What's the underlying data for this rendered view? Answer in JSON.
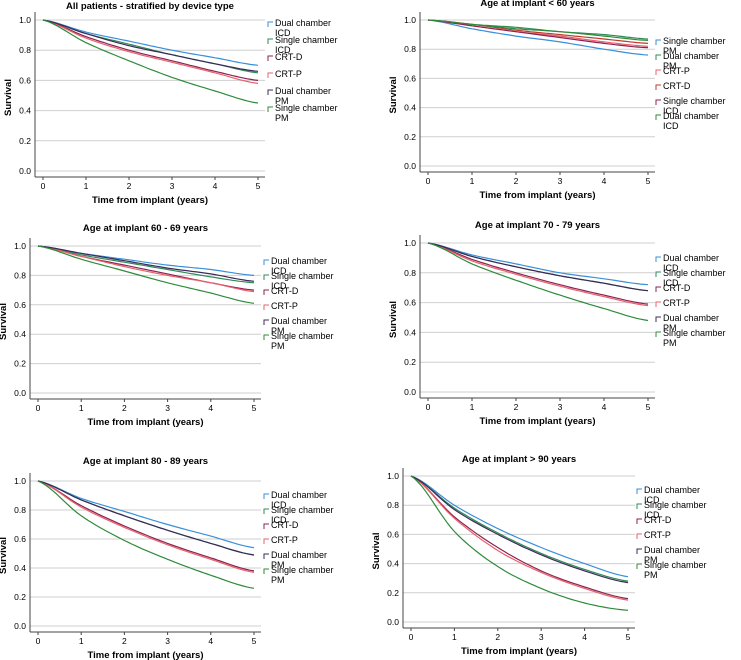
{
  "chart_data": [
    {
      "type": "line",
      "title": "All patients - stratified by device type",
      "xlabel": "Time from implant (years)",
      "ylabel": "Survival",
      "xlim": [
        0,
        5
      ],
      "ylim": [
        0,
        1.0
      ],
      "xticks": [
        "0",
        "1",
        "2",
        "3",
        "4",
        "5"
      ],
      "yticks": [
        "0.0",
        "0.2",
        "0.4",
        "0.6",
        "0.8",
        "1.0"
      ],
      "x": [
        0,
        1,
        2,
        3,
        4,
        5
      ],
      "legend": [
        "Dual chamber ICD",
        "Single chamber ICD",
        "CRT-D",
        "CRT-P",
        "Dual chamber PM",
        "Single chamber PM"
      ],
      "series": [
        {
          "name": "Dual chamber ICD",
          "color": "#3a8fd9",
          "values": [
            1.0,
            0.92,
            0.86,
            0.8,
            0.75,
            0.7
          ]
        },
        {
          "name": "Single chamber ICD",
          "color": "#2e8b57",
          "values": [
            1.0,
            0.91,
            0.84,
            0.77,
            0.71,
            0.65
          ]
        },
        {
          "name": "CRT-D",
          "color": "#8b2252",
          "values": [
            1.0,
            0.89,
            0.8,
            0.73,
            0.66,
            0.6
          ]
        },
        {
          "name": "CRT-P",
          "color": "#e8606a",
          "values": [
            1.0,
            0.88,
            0.79,
            0.72,
            0.65,
            0.58
          ]
        },
        {
          "name": "Dual chamber PM",
          "color": "#3c2a5a",
          "values": [
            1.0,
            0.91,
            0.83,
            0.77,
            0.71,
            0.66
          ]
        },
        {
          "name": "Single chamber PM",
          "color": "#2e8b3a",
          "values": [
            1.0,
            0.85,
            0.73,
            0.62,
            0.53,
            0.45
          ]
        }
      ]
    },
    {
      "type": "line",
      "title": "Age at implant < 60 years",
      "xlabel": "Time from implant (years)",
      "ylabel": "Survival",
      "xlim": [
        0,
        5
      ],
      "ylim": [
        0,
        1.0
      ],
      "xticks": [
        "0",
        "1",
        "2",
        "3",
        "4",
        "5"
      ],
      "yticks": [
        "0.0",
        "0.2",
        "0.4",
        "0.6",
        "0.8",
        "1.0"
      ],
      "x": [
        0,
        1,
        2,
        3,
        4,
        5
      ],
      "legend": [
        "Single chamber PM",
        "Dual chamber PM",
        "CRT-P",
        "CRT-D",
        "Single chamber ICD",
        "Dual chamber ICD"
      ],
      "series": [
        {
          "name": "Single chamber PM",
          "color": "#3a8fd9",
          "values": [
            1.0,
            0.94,
            0.89,
            0.85,
            0.8,
            0.76
          ]
        },
        {
          "name": "Dual chamber PM",
          "color": "#2e8b57",
          "values": [
            1.0,
            0.97,
            0.95,
            0.92,
            0.9,
            0.87
          ]
        },
        {
          "name": "CRT-P",
          "color": "#e8606a",
          "values": [
            1.0,
            0.96,
            0.92,
            0.89,
            0.85,
            0.82
          ]
        },
        {
          "name": "CRT-D",
          "color": "#c0392b",
          "values": [
            1.0,
            0.97,
            0.93,
            0.9,
            0.87,
            0.84
          ]
        },
        {
          "name": "Single chamber ICD",
          "color": "#8b2252",
          "values": [
            1.0,
            0.96,
            0.92,
            0.88,
            0.84,
            0.81
          ]
        },
        {
          "name": "Dual chamber ICD",
          "color": "#2e8b3a",
          "values": [
            1.0,
            0.97,
            0.94,
            0.92,
            0.89,
            0.86
          ]
        }
      ]
    },
    {
      "type": "line",
      "title": "Age at implant 60 - 69 years",
      "xlabel": "Time from implant (years)",
      "ylabel": "Survival",
      "xlim": [
        0,
        5
      ],
      "ylim": [
        0,
        1.0
      ],
      "xticks": [
        "0",
        "1",
        "2",
        "3",
        "4",
        "5"
      ],
      "yticks": [
        "0.0",
        "0.2",
        "0.4",
        "0.6",
        "0.8",
        "1.0"
      ],
      "x": [
        0,
        1,
        2,
        3,
        4,
        5
      ],
      "legend": [
        "Dual chamber ICD",
        "Single chamber ICD",
        "CRT-D",
        "CRT-P",
        "Dual chamber PM",
        "Single chamber PM"
      ],
      "series": [
        {
          "name": "Dual chamber ICD",
          "color": "#3a8fd9",
          "values": [
            1.0,
            0.95,
            0.91,
            0.87,
            0.84,
            0.8
          ]
        },
        {
          "name": "Single chamber ICD",
          "color": "#2e8b57",
          "values": [
            1.0,
            0.94,
            0.89,
            0.84,
            0.79,
            0.75
          ]
        },
        {
          "name": "CRT-D",
          "color": "#8b2252",
          "values": [
            1.0,
            0.93,
            0.87,
            0.81,
            0.75,
            0.7
          ]
        },
        {
          "name": "CRT-P",
          "color": "#e8606a",
          "values": [
            1.0,
            0.93,
            0.86,
            0.8,
            0.75,
            0.69
          ]
        },
        {
          "name": "Dual chamber PM",
          "color": "#3c2a5a",
          "values": [
            1.0,
            0.95,
            0.9,
            0.85,
            0.81,
            0.76
          ]
        },
        {
          "name": "Single chamber PM",
          "color": "#2e8b3a",
          "values": [
            1.0,
            0.91,
            0.83,
            0.75,
            0.68,
            0.61
          ]
        }
      ]
    },
    {
      "type": "line",
      "title": "Age at implant 70 - 79 years",
      "xlabel": "Time from implant (years)",
      "ylabel": "Survival",
      "xlim": [
        0,
        5
      ],
      "ylim": [
        0,
        1.0
      ],
      "xticks": [
        "0",
        "1",
        "2",
        "3",
        "4",
        "5"
      ],
      "yticks": [
        "0.0",
        "0.2",
        "0.4",
        "0.6",
        "0.8",
        "1.0"
      ],
      "x": [
        0,
        1,
        2,
        3,
        4,
        5
      ],
      "legend": [
        "Dual chamber ICD",
        "Single chamber ICD",
        "CRT-D",
        "CRT-P",
        "Dual chamber PM",
        "Single chamber PM"
      ],
      "series": [
        {
          "name": "Dual chamber ICD",
          "color": "#3a8fd9",
          "values": [
            1.0,
            0.92,
            0.86,
            0.8,
            0.76,
            0.72
          ]
        },
        {
          "name": "Single chamber ICD",
          "color": "#2e8b57",
          "values": [
            1.0,
            0.91,
            0.84,
            0.78,
            0.73,
            0.68
          ]
        },
        {
          "name": "CRT-D",
          "color": "#8b2252",
          "values": [
            1.0,
            0.89,
            0.8,
            0.72,
            0.65,
            0.59
          ]
        },
        {
          "name": "CRT-P",
          "color": "#e8606a",
          "values": [
            1.0,
            0.88,
            0.79,
            0.71,
            0.64,
            0.58
          ]
        },
        {
          "name": "Dual chamber PM",
          "color": "#3c2a5a",
          "values": [
            1.0,
            0.91,
            0.84,
            0.78,
            0.73,
            0.68
          ]
        },
        {
          "name": "Single chamber PM",
          "color": "#2e8b3a",
          "values": [
            1.0,
            0.86,
            0.75,
            0.65,
            0.56,
            0.48
          ]
        }
      ]
    },
    {
      "type": "line",
      "title": "Age at implant 80 - 89 years",
      "xlabel": "Time from implant (years)",
      "ylabel": "Survival",
      "xlim": [
        0,
        5
      ],
      "ylim": [
        0,
        1.0
      ],
      "xticks": [
        "0",
        "1",
        "2",
        "3",
        "4",
        "5"
      ],
      "yticks": [
        "0.0",
        "0.2",
        "0.4",
        "0.6",
        "0.8",
        "1.0"
      ],
      "x": [
        0,
        1,
        2,
        3,
        4,
        5
      ],
      "legend": [
        "Dual chamber ICD",
        "Single chamber ICD",
        "CRT-D",
        "CRT-P",
        "Dual chamber PM",
        "Single chamber PM"
      ],
      "series": [
        {
          "name": "Dual chamber ICD",
          "color": "#3a8fd9",
          "values": [
            1.0,
            0.88,
            0.79,
            0.7,
            0.62,
            0.54
          ]
        },
        {
          "name": "Single chamber ICD",
          "color": "#2e8b57",
          "values": [
            1.0,
            0.87,
            0.76,
            0.66,
            0.57,
            0.49
          ]
        },
        {
          "name": "CRT-D",
          "color": "#8b2252",
          "values": [
            1.0,
            0.83,
            0.69,
            0.57,
            0.47,
            0.38
          ]
        },
        {
          "name": "CRT-P",
          "color": "#e8606a",
          "values": [
            1.0,
            0.82,
            0.68,
            0.56,
            0.46,
            0.37
          ]
        },
        {
          "name": "Dual chamber PM",
          "color": "#3c2a5a",
          "values": [
            1.0,
            0.87,
            0.76,
            0.66,
            0.57,
            0.49
          ]
        },
        {
          "name": "Single chamber PM",
          "color": "#2e8b3a",
          "values": [
            1.0,
            0.76,
            0.59,
            0.46,
            0.35,
            0.26
          ]
        }
      ]
    },
    {
      "type": "line",
      "title": "Age at implant > 90 years",
      "xlabel": "Time from implant (years)",
      "ylabel": "Survival",
      "xlim": [
        0,
        5
      ],
      "ylim": [
        0,
        1.0
      ],
      "xticks": [
        "0",
        "1",
        "2",
        "3",
        "4",
        "5"
      ],
      "yticks": [
        "0.0",
        "0.2",
        "0.4",
        "0.6",
        "0.8",
        "1.0"
      ],
      "x": [
        0,
        1,
        2,
        3,
        4,
        5
      ],
      "legend": [
        "Dual chamber ICD",
        "Single chamber ICD",
        "CRT-D",
        "CRT-P",
        "Dual chamber PM",
        "Single chamber PM"
      ],
      "series": [
        {
          "name": "Dual chamber ICD",
          "color": "#3a8fd9",
          "values": [
            1.0,
            0.8,
            0.64,
            0.51,
            0.4,
            0.31
          ]
        },
        {
          "name": "Single chamber ICD",
          "color": "#2e8b57",
          "values": [
            1.0,
            0.78,
            0.61,
            0.47,
            0.36,
            0.28
          ]
        },
        {
          "name": "CRT-D",
          "color": "#8b2252",
          "values": [
            1.0,
            0.72,
            0.51,
            0.35,
            0.24,
            0.16
          ]
        },
        {
          "name": "CRT-P",
          "color": "#e8606a",
          "values": [
            1.0,
            0.71,
            0.49,
            0.34,
            0.23,
            0.15
          ]
        },
        {
          "name": "Dual chamber PM",
          "color": "#3c2a5a",
          "values": [
            1.0,
            0.77,
            0.6,
            0.46,
            0.35,
            0.27
          ]
        },
        {
          "name": "Single chamber PM",
          "color": "#2e8b3a",
          "values": [
            1.0,
            0.62,
            0.38,
            0.23,
            0.13,
            0.08
          ]
        }
      ]
    }
  ]
}
